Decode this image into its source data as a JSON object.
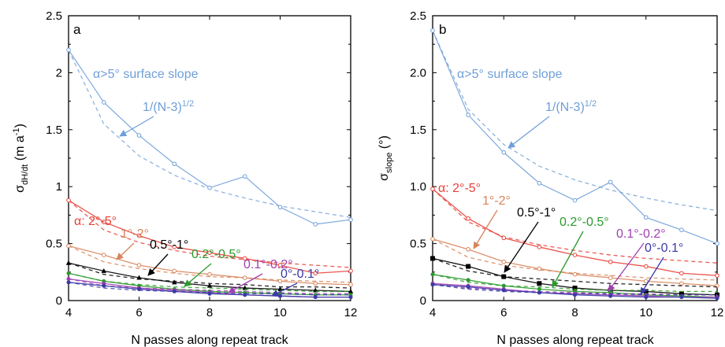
{
  "chart_data": [
    {
      "type": "line",
      "panel_label": "a",
      "xlabel": "N passes along repeat track",
      "ylabel": "σ",
      "ylabel_sub": "dH/dt",
      "ylabel_unit": " (m a",
      "ylabel_sup": "-1",
      "ylabel_close": ")",
      "xlim": [
        4,
        12
      ],
      "ylim": [
        0,
        2.5
      ],
      "xticks": [
        "4",
        "6",
        "8",
        "10",
        "12"
      ],
      "yticks": [
        "0",
        "0.5",
        "1",
        "1.5",
        "2",
        "2.5"
      ],
      "x": [
        4,
        5,
        6,
        7,
        8,
        9,
        10,
        11,
        12
      ],
      "series": [
        {
          "name": "α>5° surface slope",
          "color": "#6f9fd8",
          "values": [
            2.2,
            1.74,
            1.45,
            1.2,
            0.99,
            1.09,
            0.82,
            0.67,
            0.71
          ],
          "model": [
            2.2,
            1.55,
            1.27,
            1.1,
            0.98,
            0.9,
            0.83,
            0.78,
            0.73
          ]
        },
        {
          "name": "α: 2°-5°",
          "color": "#e8413a",
          "values": [
            0.88,
            0.69,
            0.57,
            0.47,
            0.42,
            0.37,
            0.31,
            0.24,
            0.26
          ],
          "model": [
            0.88,
            0.62,
            0.51,
            0.44,
            0.39,
            0.36,
            0.33,
            0.31,
            0.29
          ]
        },
        {
          "name": "1°-2°",
          "color": "#d8845a",
          "values": [
            0.48,
            0.4,
            0.31,
            0.26,
            0.23,
            0.2,
            0.17,
            0.15,
            0.14
          ],
          "model": [
            0.48,
            0.34,
            0.28,
            0.24,
            0.21,
            0.2,
            0.18,
            0.17,
            0.16
          ]
        },
        {
          "name": "0.5°-1°",
          "color": "#000000",
          "values": [
            0.33,
            0.26,
            0.2,
            0.16,
            0.13,
            0.11,
            0.1,
            0.09,
            0.08
          ],
          "model": [
            0.33,
            0.23,
            0.19,
            0.17,
            0.15,
            0.14,
            0.12,
            0.12,
            0.11
          ]
        },
        {
          "name": "0.2°-0.5°",
          "color": "#2a9a2a",
          "values": [
            0.24,
            0.17,
            0.13,
            0.1,
            0.08,
            0.07,
            0.06,
            0.05,
            0.05
          ],
          "model": [
            0.24,
            0.17,
            0.14,
            0.12,
            0.11,
            0.1,
            0.09,
            0.08,
            0.08
          ]
        },
        {
          "name": "0.1°-0.2°",
          "color": "#a040b0",
          "values": [
            0.19,
            0.15,
            0.11,
            0.09,
            0.07,
            0.05,
            0.04,
            0.03,
            0.03
          ],
          "model": [
            0.19,
            0.13,
            0.11,
            0.1,
            0.09,
            0.08,
            0.07,
            0.06,
            0.06
          ]
        },
        {
          "name": "0°-0.1°",
          "color": "#3a3aa8",
          "values": [
            0.16,
            0.13,
            0.1,
            0.08,
            0.06,
            0.05,
            0.04,
            0.03,
            0.03
          ],
          "model": [
            0.16,
            0.11,
            0.09,
            0.08,
            0.07,
            0.06,
            0.06,
            0.05,
            0.05
          ]
        }
      ],
      "annotations": {
        "model": "1/(N-3)",
        "model_sup": "1/2",
        "surface": "α>5° surface slope"
      }
    },
    {
      "type": "line",
      "panel_label": "b",
      "xlabel": "N passes along repeat track",
      "ylabel": "σ",
      "ylabel_sub": "slope",
      "ylabel_unit": " (°)",
      "xlim": [
        4,
        12
      ],
      "ylim": [
        0,
        2.5
      ],
      "xticks": [
        "4",
        "6",
        "8",
        "10",
        "12"
      ],
      "yticks": [
        "0",
        "0.5",
        "1.0",
        "1.5",
        "2.0",
        "2.5"
      ],
      "x": [
        4,
        5,
        6,
        7,
        8,
        9,
        10,
        11,
        12
      ],
      "series": [
        {
          "name": "α>5° surface slope",
          "color": "#6f9fd8",
          "values": [
            2.37,
            1.63,
            1.3,
            1.03,
            0.88,
            1.04,
            0.73,
            0.62,
            0.5
          ],
          "model": [
            2.37,
            1.68,
            1.37,
            1.18,
            1.06,
            0.97,
            0.9,
            0.84,
            0.79
          ]
        },
        {
          "name": "α: 2°-5°",
          "color": "#e8413a",
          "values": [
            0.98,
            0.72,
            0.55,
            0.47,
            0.4,
            0.34,
            0.3,
            0.24,
            0.22
          ],
          "model": [
            0.98,
            0.69,
            0.56,
            0.49,
            0.44,
            0.4,
            0.37,
            0.35,
            0.33
          ]
        },
        {
          "name": "1°-2°",
          "color": "#d8845a",
          "values": [
            0.54,
            0.45,
            0.34,
            0.28,
            0.23,
            0.2,
            0.17,
            0.15,
            0.13
          ],
          "model": [
            0.54,
            0.38,
            0.31,
            0.27,
            0.24,
            0.22,
            0.2,
            0.19,
            0.18
          ]
        },
        {
          "name": "0.5°-1°",
          "color": "#000000",
          "values": [
            0.37,
            0.3,
            0.21,
            0.15,
            0.11,
            0.09,
            0.08,
            0.06,
            0.05
          ],
          "model": [
            0.37,
            0.26,
            0.21,
            0.19,
            0.17,
            0.15,
            0.14,
            0.13,
            0.12
          ]
        },
        {
          "name": "0.2°-0.5°",
          "color": "#2a9a2a",
          "values": [
            0.23,
            0.18,
            0.13,
            0.1,
            0.08,
            0.07,
            0.05,
            0.04,
            0.03
          ],
          "model": [
            0.23,
            0.16,
            0.13,
            0.12,
            0.1,
            0.09,
            0.09,
            0.08,
            0.08
          ]
        },
        {
          "name": "0.1°-0.2°",
          "color": "#a040b0",
          "values": [
            0.15,
            0.13,
            0.1,
            0.07,
            0.06,
            0.05,
            0.04,
            0.03,
            0.03
          ],
          "model": [
            0.15,
            0.11,
            0.09,
            0.08,
            0.07,
            0.06,
            0.06,
            0.05,
            0.05
          ]
        },
        {
          "name": "0°-0.1°",
          "color": "#3a3aa8",
          "values": [
            0.14,
            0.12,
            0.09,
            0.07,
            0.05,
            0.04,
            0.03,
            0.03,
            0.02
          ],
          "model": [
            0.14,
            0.1,
            0.08,
            0.07,
            0.06,
            0.06,
            0.05,
            0.05,
            0.05
          ]
        }
      ],
      "annotations": {
        "model": "1/(N-3)",
        "model_sup": "1/2",
        "surface": "α>5° surface slope"
      }
    }
  ]
}
